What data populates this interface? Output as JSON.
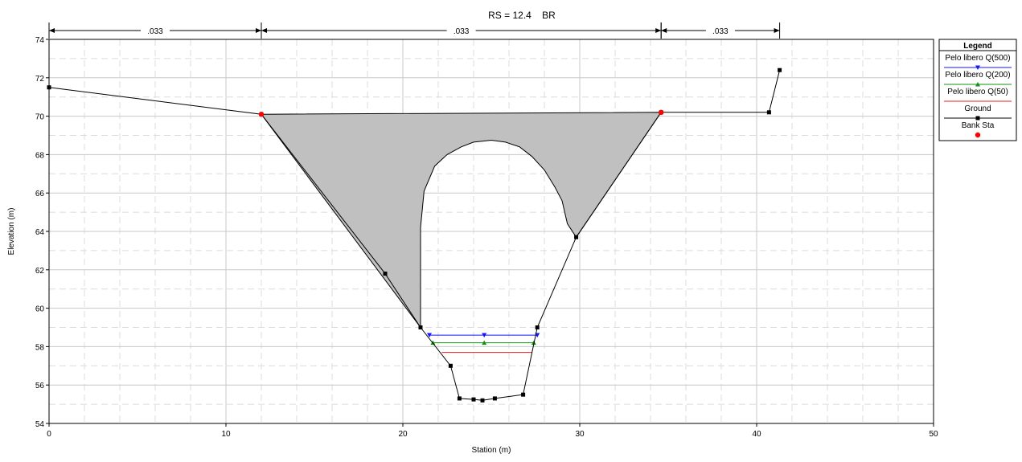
{
  "chart_data": {
    "type": "line",
    "title": "RS = 12.4    BR",
    "xlabel": "Station (m)",
    "ylabel": "Elevation (m)",
    "xlim": [
      0,
      50
    ],
    "ylim": [
      54,
      74
    ],
    "x_ticks": [
      0,
      10,
      20,
      30,
      40,
      50
    ],
    "y_ticks": [
      54,
      56,
      58,
      60,
      62,
      64,
      66,
      68,
      70,
      72,
      74
    ],
    "grid": true,
    "grid_style": "dashed",
    "legend_placement": "right-outside-top",
    "mannings_n": [
      {
        "label": ".033",
        "from": 0,
        "to": 12.0
      },
      {
        "label": ".033",
        "from": 12.0,
        "to": 34.6
      },
      {
        "label": ".033",
        "from": 34.6,
        "to": 41.3
      }
    ],
    "bridge_deck": {
      "color": "#c0c0c0",
      "outline": [
        [
          12.0,
          70.1
        ],
        [
          34.6,
          70.2
        ],
        [
          29.8,
          63.7
        ],
        [
          21.0,
          59.0
        ]
      ],
      "opening": [
        [
          21.0,
          59.0
        ],
        [
          21.0,
          64.2
        ],
        [
          21.2,
          66.1
        ],
        [
          21.8,
          67.4
        ],
        [
          22.5,
          68.0
        ],
        [
          23.3,
          68.4
        ],
        [
          24.0,
          68.65
        ],
        [
          25.0,
          68.75
        ],
        [
          25.8,
          68.65
        ],
        [
          26.6,
          68.4
        ],
        [
          27.3,
          67.9
        ],
        [
          28.0,
          67.2
        ],
        [
          28.6,
          66.3
        ],
        [
          29.0,
          65.6
        ],
        [
          29.3,
          64.4
        ],
        [
          29.8,
          63.7
        ]
      ]
    },
    "series": [
      {
        "name": "Pelo libero Q(500)",
        "color": "#1515ff",
        "marker": "triangle-down",
        "x": [
          21.5,
          24.6,
          27.6
        ],
        "y": [
          58.6,
          58.6,
          58.6
        ]
      },
      {
        "name": "Pelo libero Q(200)",
        "color": "#159015",
        "marker": "triangle-up",
        "x": [
          21.7,
          24.6,
          27.4
        ],
        "y": [
          58.2,
          58.2,
          58.2
        ]
      },
      {
        "name": "Pelo libero Q(50)",
        "color": "#e02020",
        "marker": "none",
        "x": [
          22.2,
          27.3
        ],
        "y": [
          57.7,
          57.7
        ]
      },
      {
        "name": "Ground",
        "color": "#000000",
        "marker": "square",
        "x": [
          0.0,
          12.0,
          19.0,
          21.0,
          22.7,
          23.2,
          24.0,
          24.5,
          25.2,
          26.8,
          27.6,
          29.8,
          34.6,
          40.7,
          41.3
        ],
        "y": [
          71.5,
          70.1,
          61.8,
          59.0,
          57.0,
          55.3,
          55.25,
          55.2,
          55.3,
          55.5,
          59.0,
          63.7,
          70.2,
          70.2,
          72.4
        ]
      },
      {
        "name": "Bank Sta",
        "color": "#ff0000",
        "marker": "circle",
        "x": [
          12.0,
          34.6
        ],
        "y": [
          70.1,
          70.2
        ]
      }
    ],
    "legend": {
      "title": "Legend",
      "entries": [
        "Pelo libero Q(500)",
        "Pelo libero Q(200)",
        "Pelo libero Q(50)",
        "Ground",
        "Bank Sta"
      ]
    }
  }
}
